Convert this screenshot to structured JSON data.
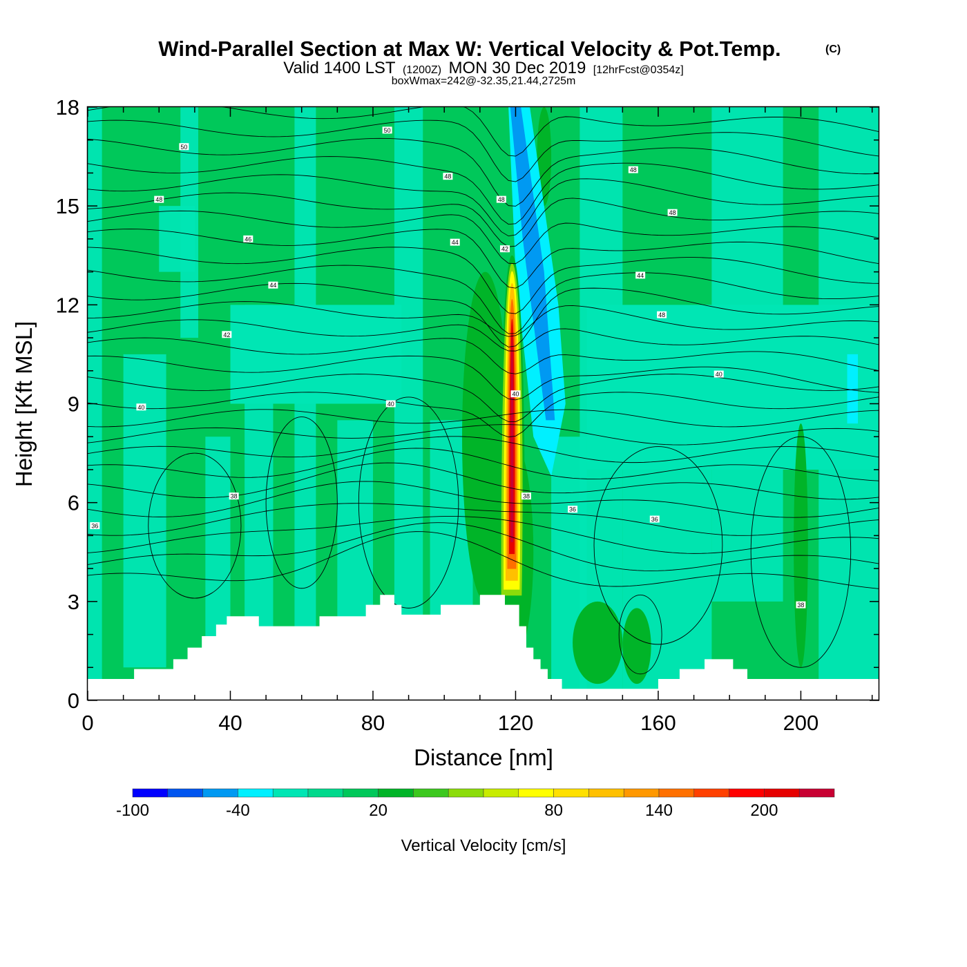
{
  "title": {
    "main": "Wind-Parallel Section at Max W: Vertical Velocity & Pot.Temp.",
    "copyright": "(C)",
    "valid_prefix": "Valid 1400 LST",
    "valid_z": "(1200Z)",
    "valid_date": "MON 30 Dec 2019",
    "forecast": "[12hrFcst@0354z]",
    "boxwmax": "boxWmax=242@-32.35,21.44,2725m"
  },
  "chart_data": {
    "type": "heatmap",
    "xlabel": "Distance [nm]",
    "ylabel": "Height [Kft MSL]",
    "xlim": [
      0,
      222
    ],
    "ylim": [
      0,
      18
    ],
    "xticks": [
      0,
      40,
      80,
      120,
      160,
      200
    ],
    "yticks": [
      0,
      3,
      6,
      9,
      12,
      15,
      18
    ],
    "terrain": {
      "x": [
        0,
        13,
        13,
        24,
        24,
        28,
        28,
        32,
        32,
        36,
        36,
        39,
        39,
        40,
        40,
        48,
        48,
        65,
        65,
        78,
        78,
        82,
        82,
        86,
        86,
        88,
        88,
        99,
        99,
        110,
        110,
        117,
        117,
        121,
        121,
        123,
        123,
        125,
        125,
        127,
        127,
        129,
        129,
        133,
        133,
        137,
        137,
        160,
        160,
        166,
        166,
        173,
        173,
        181,
        181,
        185,
        185,
        210,
        210,
        222
      ],
      "height": [
        0.65,
        0.65,
        0.95,
        0.95,
        1.25,
        1.25,
        1.6,
        1.6,
        1.95,
        1.95,
        2.3,
        2.3,
        2.55,
        2.55,
        2.55,
        2.55,
        2.25,
        2.25,
        2.55,
        2.55,
        2.9,
        2.9,
        3.2,
        3.2,
        2.9,
        2.9,
        2.6,
        2.6,
        2.9,
        2.9,
        3.2,
        3.2,
        2.9,
        2.9,
        2.25,
        2.25,
        1.6,
        1.6,
        1.25,
        1.25,
        0.95,
        0.95,
        0.65,
        0.65,
        0.35,
        0.35,
        0.35,
        0.35,
        0.65,
        0.65,
        0.95,
        0.95,
        1.25,
        1.25,
        0.95,
        0.95,
        0.65,
        0.65,
        0.65,
        0.65
      ]
    },
    "wmax_feature": {
      "x": 119,
      "height_max_kft": 13.5,
      "peak_cm_s": 242
    },
    "colorbar": {
      "label": "Vertical Velocity [cm/s]",
      "ticks": [
        -100,
        -40,
        20,
        80,
        140,
        200
      ],
      "boundaries": [
        -100,
        -80,
        -60,
        -40,
        -20,
        0,
        10,
        20,
        30,
        40,
        50,
        60,
        80,
        100,
        120,
        140,
        160,
        180,
        200,
        220,
        240
      ],
      "colors": [
        "#0000ff",
        "#0055f0",
        "#0099f2",
        "#00f0ff",
        "#00e6b4",
        "#00d98c",
        "#00c85a",
        "#00b428",
        "#3cc81e",
        "#8cdc0a",
        "#c8ec00",
        "#ffff00",
        "#ffe000",
        "#ffc000",
        "#ff9800",
        "#ff7000",
        "#ff4000",
        "#ff0000",
        "#e60000",
        "#c80032"
      ]
    },
    "contours": {
      "variable": "potential temperature",
      "labels": [
        {
          "x": 27,
          "h": 16.8,
          "text": "50"
        },
        {
          "x": 84,
          "h": 17.3,
          "text": "50"
        },
        {
          "x": 20,
          "h": 15.2,
          "text": "48"
        },
        {
          "x": 101,
          "h": 15.9,
          "text": "48"
        },
        {
          "x": 116,
          "h": 15.2,
          "text": "48"
        },
        {
          "x": 153,
          "h": 16.1,
          "text": "48"
        },
        {
          "x": 164,
          "h": 14.8,
          "text": "48"
        },
        {
          "x": 45,
          "h": 14.0,
          "text": "46"
        },
        {
          "x": 103,
          "h": 13.9,
          "text": "44"
        },
        {
          "x": 117,
          "h": 13.7,
          "text": "42"
        },
        {
          "x": 52,
          "h": 12.6,
          "text": "44"
        },
        {
          "x": 155,
          "h": 12.9,
          "text": "44"
        },
        {
          "x": 161,
          "h": 11.7,
          "text": "48"
        },
        {
          "x": 39,
          "h": 11.1,
          "text": "42"
        },
        {
          "x": 15,
          "h": 8.9,
          "text": "40"
        },
        {
          "x": 85,
          "h": 9.0,
          "text": "40"
        },
        {
          "x": 120,
          "h": 9.3,
          "text": "40"
        },
        {
          "x": 177,
          "h": 9.9,
          "text": "40"
        },
        {
          "x": 41,
          "h": 6.2,
          "text": "38"
        },
        {
          "x": 123,
          "h": 6.2,
          "text": "38"
        },
        {
          "x": 136,
          "h": 5.8,
          "text": "36"
        },
        {
          "x": 159,
          "h": 5.5,
          "text": "36"
        },
        {
          "x": 2,
          "h": 5.3,
          "text": "36"
        },
        {
          "x": 200,
          "h": 2.9,
          "text": "38"
        }
      ]
    }
  }
}
